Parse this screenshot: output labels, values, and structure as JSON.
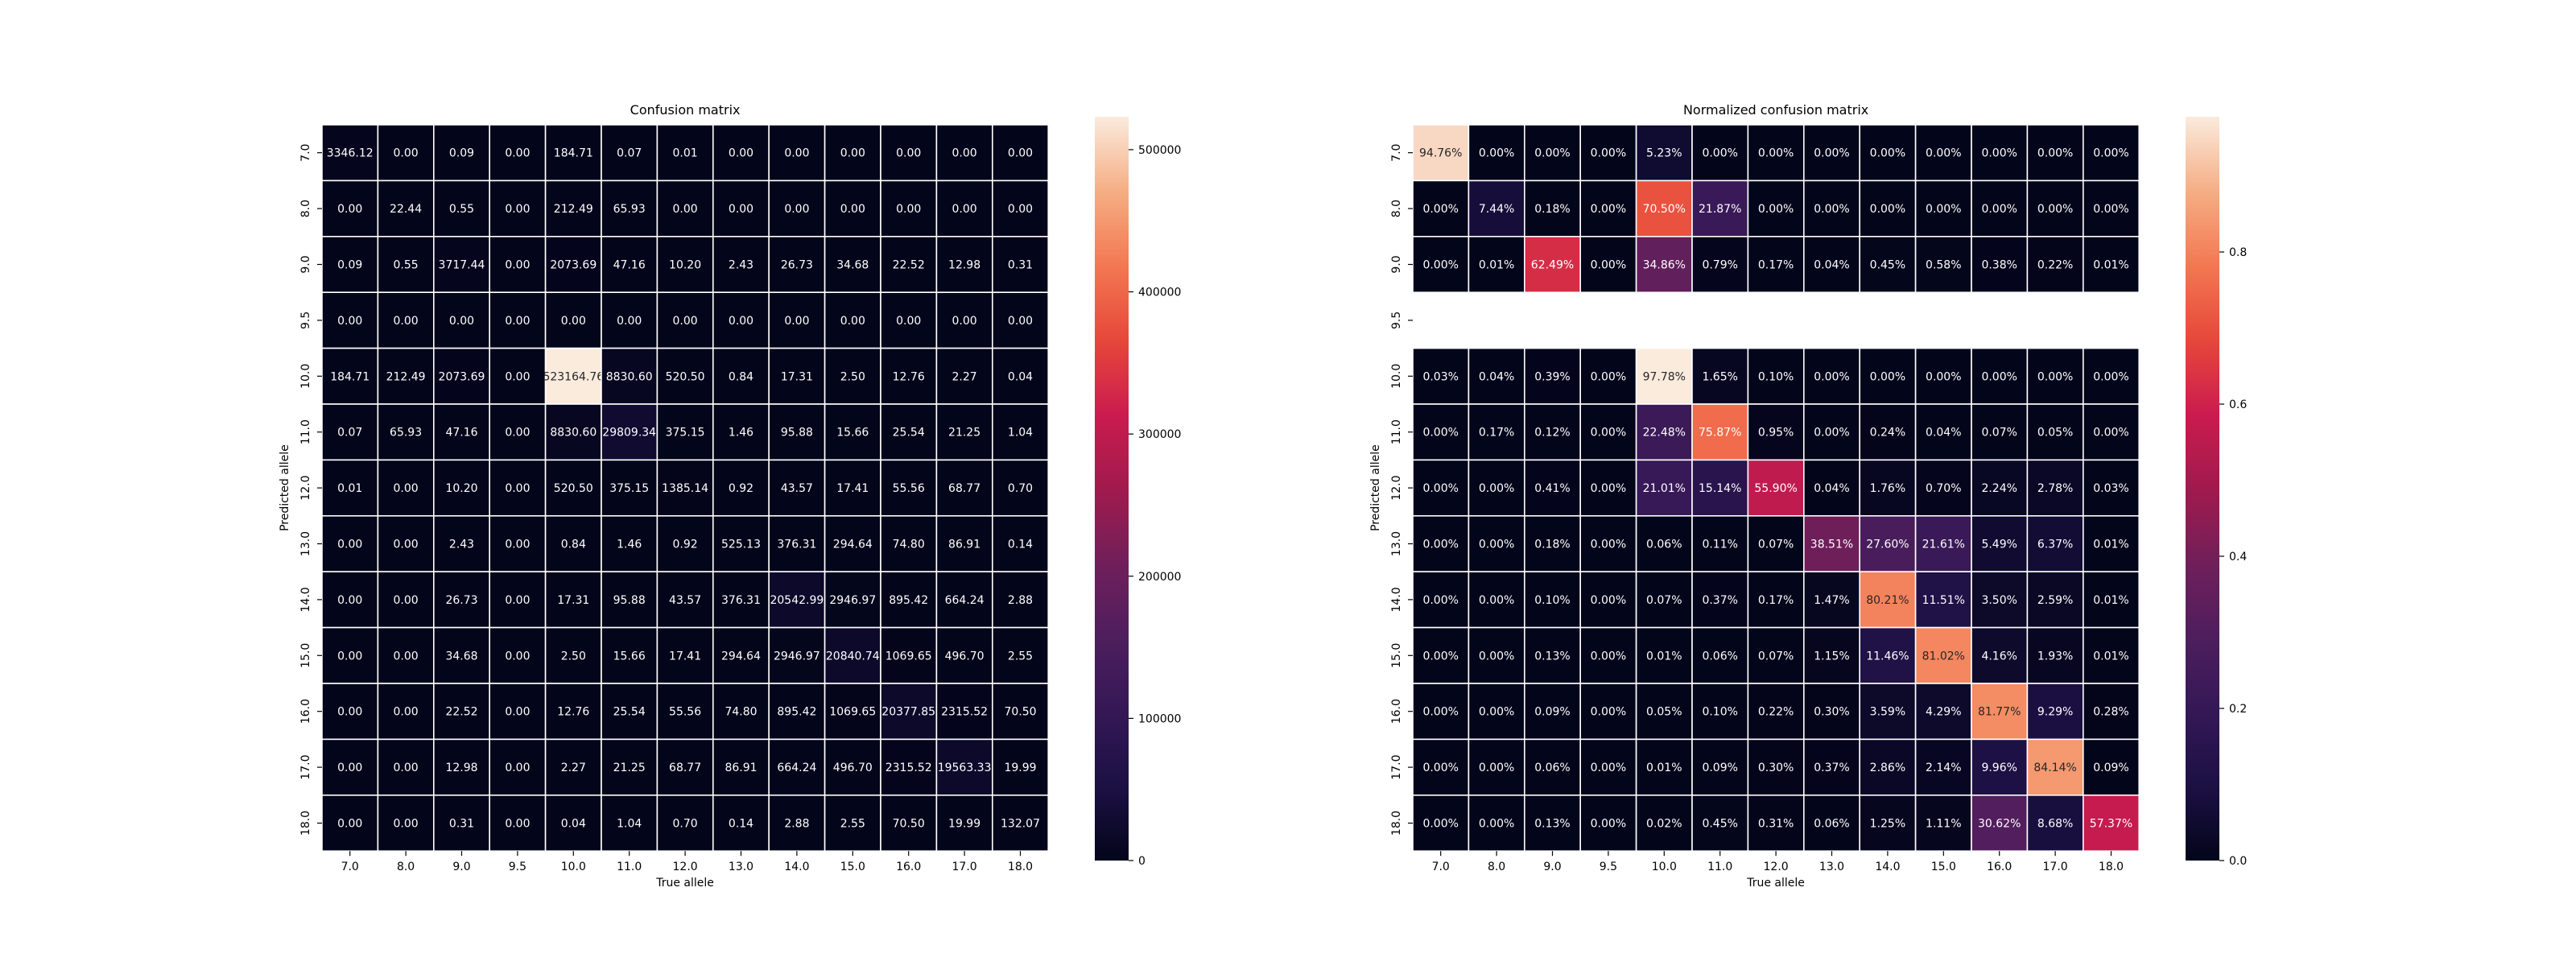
{
  "chart_data": [
    {
      "type": "heatmap",
      "title": "Confusion matrix",
      "xlabel": "True allele",
      "ylabel": "Predicted allele",
      "x_ticks": [
        "7.0",
        "8.0",
        "9.0",
        "9.5",
        "10.0",
        "11.0",
        "12.0",
        "13.0",
        "14.0",
        "15.0",
        "16.0",
        "17.0",
        "18.0"
      ],
      "y_ticks": [
        "7.0",
        "8.0",
        "9.0",
        "9.5",
        "10.0",
        "11.0",
        "12.0",
        "13.0",
        "14.0",
        "15.0",
        "16.0",
        "17.0",
        "18.0"
      ],
      "colorbar": {
        "min": 0,
        "max": 523164.76,
        "ticks": [
          0,
          100000,
          200000,
          300000,
          400000,
          500000
        ]
      },
      "colormap": "rocket",
      "cell_text": [
        [
          "3346.12",
          "0.00",
          "0.09",
          "0.00",
          "184.71",
          "0.07",
          "0.01",
          "0.00",
          "0.00",
          "0.00",
          "0.00",
          "0.00",
          "0.00"
        ],
        [
          "0.00",
          "22.44",
          "0.55",
          "0.00",
          "212.49",
          "65.93",
          "0.00",
          "0.00",
          "0.00",
          "0.00",
          "0.00",
          "0.00",
          "0.00"
        ],
        [
          "0.09",
          "0.55",
          "3717.44",
          "0.00",
          "2073.69",
          "47.16",
          "10.20",
          "2.43",
          "26.73",
          "34.68",
          "22.52",
          "12.98",
          "0.31"
        ],
        [
          "0.00",
          "0.00",
          "0.00",
          "0.00",
          "0.00",
          "0.00",
          "0.00",
          "0.00",
          "0.00",
          "0.00",
          "0.00",
          "0.00",
          "0.00"
        ],
        [
          "184.71",
          "212.49",
          "2073.69",
          "0.00",
          "523164.76",
          "8830.60",
          "520.50",
          "0.84",
          "17.31",
          "2.50",
          "12.76",
          "2.27",
          "0.04"
        ],
        [
          "0.07",
          "65.93",
          "47.16",
          "0.00",
          "8830.60",
          "29809.34",
          "375.15",
          "1.46",
          "95.88",
          "15.66",
          "25.54",
          "21.25",
          "1.04"
        ],
        [
          "0.01",
          "0.00",
          "10.20",
          "0.00",
          "520.50",
          "375.15",
          "1385.14",
          "0.92",
          "43.57",
          "17.41",
          "55.56",
          "68.77",
          "0.70"
        ],
        [
          "0.00",
          "0.00",
          "2.43",
          "0.00",
          "0.84",
          "1.46",
          "0.92",
          "525.13",
          "376.31",
          "294.64",
          "74.80",
          "86.91",
          "0.14"
        ],
        [
          "0.00",
          "0.00",
          "26.73",
          "0.00",
          "17.31",
          "95.88",
          "43.57",
          "376.31",
          "20542.99",
          "2946.97",
          "895.42",
          "664.24",
          "2.88"
        ],
        [
          "0.00",
          "0.00",
          "34.68",
          "0.00",
          "2.50",
          "15.66",
          "17.41",
          "294.64",
          "2946.97",
          "20840.74",
          "1069.65",
          "496.70",
          "2.55"
        ],
        [
          "0.00",
          "0.00",
          "22.52",
          "0.00",
          "12.76",
          "25.54",
          "55.56",
          "74.80",
          "895.42",
          "1069.65",
          "20377.85",
          "2315.52",
          "70.50"
        ],
        [
          "0.00",
          "0.00",
          "12.98",
          "0.00",
          "2.27",
          "21.25",
          "68.77",
          "86.91",
          "664.24",
          "496.70",
          "2315.52",
          "19563.33",
          "19.99"
        ],
        [
          "0.00",
          "0.00",
          "0.31",
          "0.00",
          "0.04",
          "1.04",
          "0.70",
          "0.14",
          "2.88",
          "2.55",
          "70.50",
          "19.99",
          "132.07"
        ]
      ]
    },
    {
      "type": "heatmap",
      "title": "Normalized confusion matrix",
      "xlabel": "True allele",
      "ylabel": "Predicted allele",
      "x_ticks": [
        "7.0",
        "8.0",
        "9.0",
        "9.5",
        "10.0",
        "11.0",
        "12.0",
        "13.0",
        "14.0",
        "15.0",
        "16.0",
        "17.0",
        "18.0"
      ],
      "y_ticks": [
        "7.0",
        "8.0",
        "9.0",
        "9.5",
        "10.0",
        "11.0",
        "12.0",
        "13.0",
        "14.0",
        "15.0",
        "16.0",
        "17.0",
        "18.0"
      ],
      "colorbar": {
        "min": 0,
        "max": 0.9778,
        "ticks": [
          0.0,
          0.2,
          0.4,
          0.6,
          0.8
        ]
      },
      "colormap": "rocket",
      "empty_rows": [
        3
      ],
      "cell_text": [
        [
          "94.76%",
          "0.00%",
          "0.00%",
          "0.00%",
          "5.23%",
          "0.00%",
          "0.00%",
          "0.00%",
          "0.00%",
          "0.00%",
          "0.00%",
          "0.00%",
          "0.00%"
        ],
        [
          "0.00%",
          "7.44%",
          "0.18%",
          "0.00%",
          "70.50%",
          "21.87%",
          "0.00%",
          "0.00%",
          "0.00%",
          "0.00%",
          "0.00%",
          "0.00%",
          "0.00%"
        ],
        [
          "0.00%",
          "0.01%",
          "62.49%",
          "0.00%",
          "34.86%",
          "0.79%",
          "0.17%",
          "0.04%",
          "0.45%",
          "0.58%",
          "0.38%",
          "0.22%",
          "0.01%"
        ],
        [
          "",
          "",
          "",
          "",
          "",
          "",
          "",
          "",
          "",
          "",
          "",
          "",
          ""
        ],
        [
          "0.03%",
          "0.04%",
          "0.39%",
          "0.00%",
          "97.78%",
          "1.65%",
          "0.10%",
          "0.00%",
          "0.00%",
          "0.00%",
          "0.00%",
          "0.00%",
          "0.00%"
        ],
        [
          "0.00%",
          "0.17%",
          "0.12%",
          "0.00%",
          "22.48%",
          "75.87%",
          "0.95%",
          "0.00%",
          "0.24%",
          "0.04%",
          "0.07%",
          "0.05%",
          "0.00%"
        ],
        [
          "0.00%",
          "0.00%",
          "0.41%",
          "0.00%",
          "21.01%",
          "15.14%",
          "55.90%",
          "0.04%",
          "1.76%",
          "0.70%",
          "2.24%",
          "2.78%",
          "0.03%"
        ],
        [
          "0.00%",
          "0.00%",
          "0.18%",
          "0.00%",
          "0.06%",
          "0.11%",
          "0.07%",
          "38.51%",
          "27.60%",
          "21.61%",
          "5.49%",
          "6.37%",
          "0.01%"
        ],
        [
          "0.00%",
          "0.00%",
          "0.10%",
          "0.00%",
          "0.07%",
          "0.37%",
          "0.17%",
          "1.47%",
          "80.21%",
          "11.51%",
          "3.50%",
          "2.59%",
          "0.01%"
        ],
        [
          "0.00%",
          "0.00%",
          "0.13%",
          "0.00%",
          "0.01%",
          "0.06%",
          "0.07%",
          "1.15%",
          "11.46%",
          "81.02%",
          "4.16%",
          "1.93%",
          "0.01%"
        ],
        [
          "0.00%",
          "0.00%",
          "0.09%",
          "0.00%",
          "0.05%",
          "0.10%",
          "0.22%",
          "0.30%",
          "3.59%",
          "4.29%",
          "81.77%",
          "9.29%",
          "0.28%"
        ],
        [
          "0.00%",
          "0.00%",
          "0.06%",
          "0.00%",
          "0.01%",
          "0.09%",
          "0.30%",
          "0.37%",
          "2.86%",
          "2.14%",
          "9.96%",
          "84.14%",
          "0.09%"
        ],
        [
          "0.00%",
          "0.00%",
          "0.13%",
          "0.00%",
          "0.02%",
          "0.45%",
          "0.31%",
          "0.06%",
          "1.25%",
          "1.11%",
          "30.62%",
          "8.68%",
          "57.37%"
        ]
      ]
    }
  ]
}
